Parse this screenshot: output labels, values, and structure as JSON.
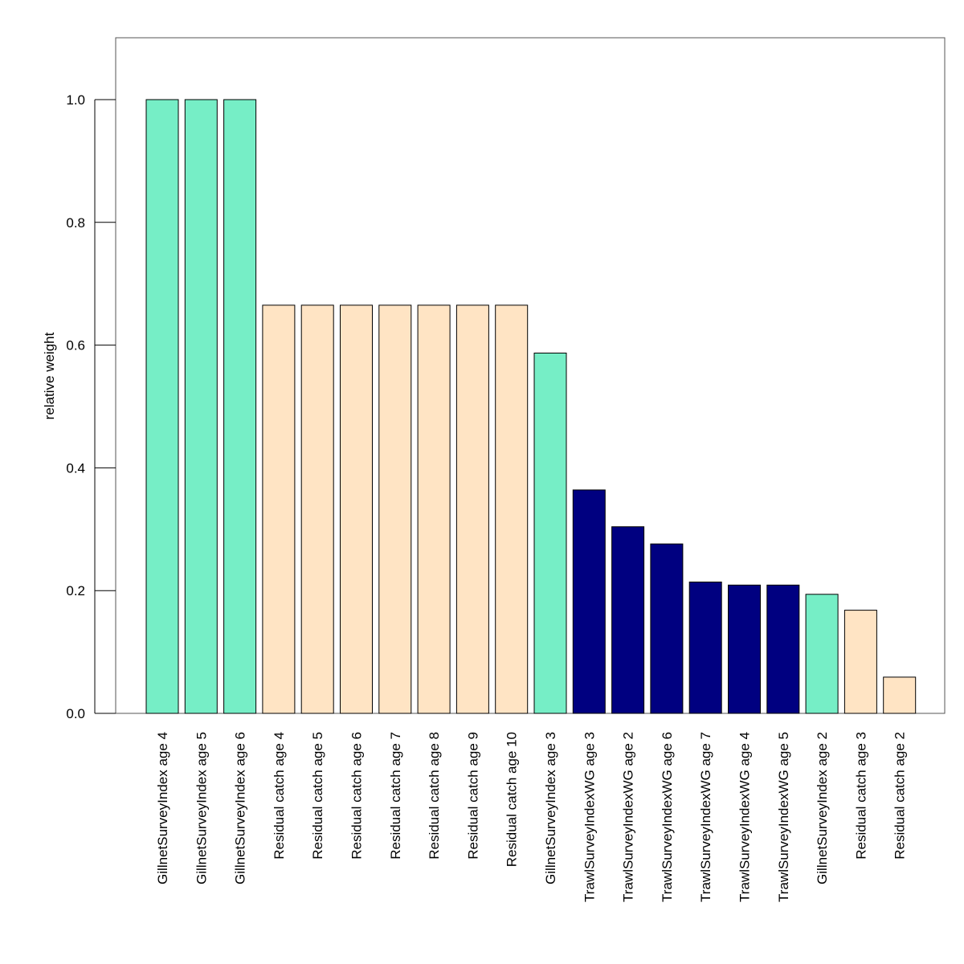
{
  "chart_data": {
    "type": "bar",
    "title": "",
    "xlabel": "",
    "ylabel": "relative weight",
    "ylim": [
      0,
      1.1
    ],
    "yticks": [
      0.0,
      0.2,
      0.4,
      0.6,
      0.8,
      1.0
    ],
    "ytick_labels": [
      "0.0",
      "0.2",
      "0.4",
      "0.6",
      "0.8",
      "1.0"
    ],
    "grid": false,
    "legend": "none",
    "categories": [
      "GillnetSurveyIndex age 4",
      "GillnetSurveyIndex age 5",
      "GillnetSurveyIndex age 6",
      "Residual catch age 4",
      "Residual catch age 5",
      "Residual catch age 6",
      "Residual catch age 7",
      "Residual catch age 8",
      "Residual catch age 9",
      "Residual catch age 10",
      "GillnetSurveyIndex age 3",
      "TrawlSurveyIndexWG age 3",
      "TrawlSurveyIndexWG age 2",
      "TrawlSurveyIndexWG age 6",
      "TrawlSurveyIndexWG age 7",
      "TrawlSurveyIndexWG age 4",
      "TrawlSurveyIndexWG age 5",
      "GillnetSurveyIndex age 2",
      "Residual catch age 3",
      "Residual catch age 2"
    ],
    "values": [
      1.0,
      1.0,
      1.0,
      0.665,
      0.665,
      0.665,
      0.665,
      0.665,
      0.665,
      0.665,
      0.587,
      0.364,
      0.304,
      0.276,
      0.214,
      0.209,
      0.209,
      0.194,
      0.168,
      0.059
    ],
    "group_colors": {
      "GillnetSurveyIndex": "#76EEC6",
      "Residual catch": "#FFE4C4",
      "TrawlSurveyIndexWG": "#000080"
    },
    "bar_border_color": "#000000"
  }
}
